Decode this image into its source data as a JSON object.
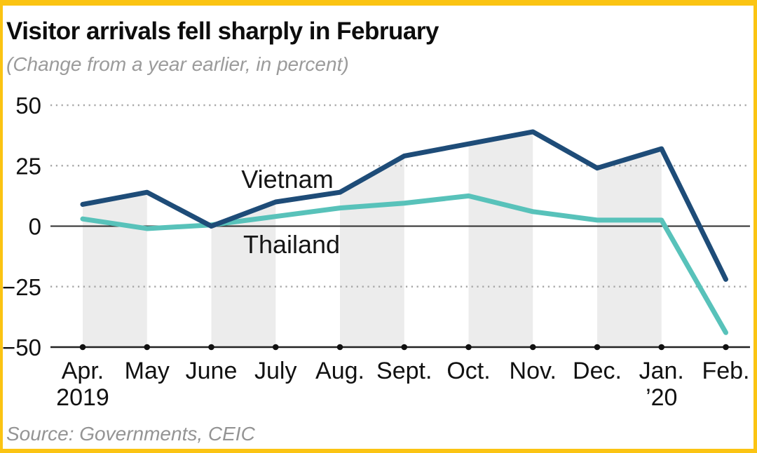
{
  "header": {
    "title": "Visitor arrivals fell sharply in February",
    "subtitle": "(Change from a year earlier, in percent)"
  },
  "footer": {
    "source": "Source: Governments, CEIC"
  },
  "colors": {
    "frame_border": "#fbc413",
    "vietnam_line": "#1e4c78",
    "thailand_line": "#58c2ba",
    "shaded_band": "#ececec",
    "grid_dots": "#a9a9a9",
    "axis_line": "#222222",
    "title_text": "#0d0d0d",
    "muted_text": "#9b9b9b"
  },
  "chart_data": {
    "type": "line",
    "title": "Visitor arrivals fell sharply in February",
    "subtitle": "(Change from a year earlier, in percent)",
    "source": "Source: Governments, CEIC",
    "x_labels": [
      "Apr.",
      "May",
      "June",
      "July",
      "Aug.",
      "Sept.",
      "Oct.",
      "Nov.",
      "Dec.",
      "Jan.",
      "Feb."
    ],
    "x_sublabels": [
      {
        "index": 0,
        "label": "2019"
      },
      {
        "index": 9,
        "label": "’20"
      }
    ],
    "y_ticks": [
      {
        "value": 50,
        "label": "50",
        "style": "dotted"
      },
      {
        "value": 25,
        "label": "25",
        "style": "dotted"
      },
      {
        "value": 0,
        "label": "0",
        "style": "solid"
      },
      {
        "value": -25,
        "label": "−25",
        "style": "dotted"
      },
      {
        "value": -50,
        "label": "−50",
        "style": "axis"
      }
    ],
    "ylim": [
      -50,
      50
    ],
    "grid": "horizontal dotted lines at 50, 25, −25; solid line at 0; solid axis baseline at −50",
    "legend_position": "inline labels next to lines",
    "series": [
      {
        "name": "Vietnam",
        "color": "#1e4c78",
        "values": [
          9,
          14,
          0,
          10,
          14,
          29,
          34,
          39,
          24,
          32,
          -22
        ]
      },
      {
        "name": "Thailand",
        "color": "#58c2ba",
        "values": [
          3,
          -1,
          0.5,
          4,
          7.5,
          9.5,
          12.5,
          6,
          2.5,
          2.5,
          -44
        ]
      }
    ],
    "shaded_intervals": [
      [
        0,
        1
      ],
      [
        2,
        3
      ],
      [
        4,
        5
      ],
      [
        6,
        7
      ],
      [
        8,
        9
      ]
    ],
    "shaded_band_note": "light gray fill under the Vietnam line, from the line down to the axis baseline, on alternating month intervals"
  }
}
